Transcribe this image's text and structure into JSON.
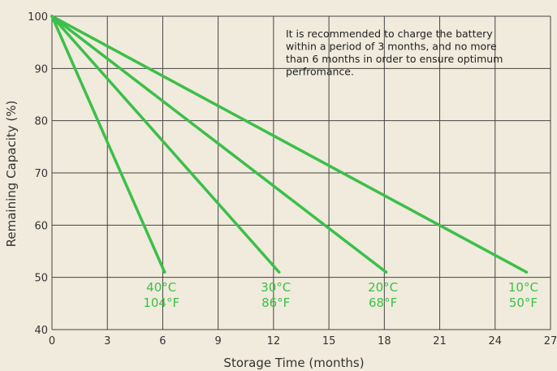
{
  "chart_data": {
    "type": "line",
    "title": "",
    "xlabel": "Storage Time (months)",
    "ylabel": "Remaining Capacity (%)",
    "xlim": [
      0,
      27
    ],
    "ylim": [
      40,
      100
    ],
    "xticks": [
      "0",
      "3",
      "6",
      "9",
      "12",
      "15",
      "18",
      "21",
      "24",
      "27"
    ],
    "yticks": [
      "40",
      "50",
      "60",
      "70",
      "80",
      "90",
      "100"
    ],
    "grid": true,
    "line_color": "#3cbf4a",
    "label_color": "#3cbf4a",
    "annotation": "It is recommended to charge the battery within a period of 3 months, and no more than 6 months in order to ensure optimum perfromance.",
    "series": [
      {
        "label_c": "40°C",
        "label_f": "104°F",
        "x": [
          0,
          6.1
        ],
        "y": [
          100,
          51
        ]
      },
      {
        "label_c": "30°C",
        "label_f": "86°F",
        "x": [
          0,
          12.3
        ],
        "y": [
          100,
          51
        ]
      },
      {
        "label_c": "20°C",
        "label_f": "68°F",
        "x": [
          0,
          18.1
        ],
        "y": [
          100,
          51
        ]
      },
      {
        "label_c": "10°C",
        "label_f": "50°F",
        "x": [
          0,
          25.7
        ],
        "y": [
          100,
          51
        ]
      }
    ]
  }
}
